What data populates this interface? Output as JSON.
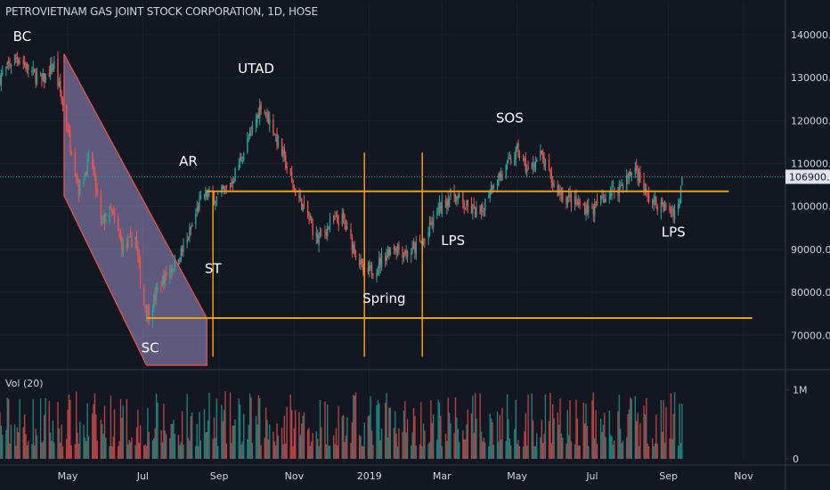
{
  "header": {
    "title": "PETROVIETNAM GAS JOINT STOCK CORPORATION, 1D, HOSE"
  },
  "volume": {
    "label": "Vol (20)"
  },
  "colors": {
    "background": "#131722",
    "grid": "#1e2230",
    "up": "#26a69a",
    "down": "#ef5350",
    "level": "#f59e0b",
    "channel_fill": "#9c8fc9",
    "text": "#d1d4dc",
    "price_tag": "#e1e3ea"
  },
  "chart_data": {
    "type": "candlestick",
    "title": "PETROVIETNAM GAS JOINT STOCK CORPORATION, 1D, HOSE",
    "price_ticks": [
      "140000.0",
      "130000.0",
      "120000.0",
      "110000.0",
      "100000.0",
      "90000.0",
      "80000.0",
      "70000.0"
    ],
    "price_tick_values": [
      140000,
      130000,
      120000,
      110000,
      100000,
      90000,
      80000,
      70000
    ],
    "ylim": [
      63000,
      143500
    ],
    "current_price": "106900.0",
    "current_price_value": 106900,
    "volume_ticks": [
      "1M",
      "0"
    ],
    "volume_tick_values": [
      1000000,
      0
    ],
    "time_ticks": [
      "May",
      "Jul",
      "Sep",
      "Nov",
      "2019",
      "Mar",
      "May",
      "Jul",
      "Sep",
      "Nov"
    ],
    "time_tick_dates": [
      "2018-05-01",
      "2018-07-01",
      "2018-09-01",
      "2018-11-01",
      "2019-01-01",
      "2019-03-01",
      "2019-05-01",
      "2019-07-01",
      "2019-09-01",
      "2019-11-01"
    ],
    "xlim": [
      "2018-03-07",
      "2019-12-05"
    ],
    "price_path": [
      {
        "date": "2018-03-07",
        "close": 130000
      },
      {
        "date": "2018-03-20",
        "close": 135000
      },
      {
        "date": "2018-04-10",
        "close": 129000
      },
      {
        "date": "2018-04-20",
        "close": 133000
      },
      {
        "date": "2018-05-01",
        "close": 118000
      },
      {
        "date": "2018-05-10",
        "close": 104000
      },
      {
        "date": "2018-05-20",
        "close": 112000
      },
      {
        "date": "2018-05-28",
        "close": 96000
      },
      {
        "date": "2018-06-05",
        "close": 99000
      },
      {
        "date": "2018-06-15",
        "close": 90000
      },
      {
        "date": "2018-06-25",
        "close": 93000
      },
      {
        "date": "2018-07-01",
        "close": 78000
      },
      {
        "date": "2018-07-06",
        "close": 75000
      },
      {
        "date": "2018-07-15",
        "close": 82000
      },
      {
        "date": "2018-07-25",
        "close": 86000
      },
      {
        "date": "2018-08-05",
        "close": 91000
      },
      {
        "date": "2018-08-15",
        "close": 100000
      },
      {
        "date": "2018-08-20",
        "close": 103000
      },
      {
        "date": "2018-08-30",
        "close": 102000
      },
      {
        "date": "2018-09-10",
        "close": 105000
      },
      {
        "date": "2018-09-20",
        "close": 112000
      },
      {
        "date": "2018-10-02",
        "close": 121000
      },
      {
        "date": "2018-10-05",
        "close": 124000
      },
      {
        "date": "2018-10-15",
        "close": 118000
      },
      {
        "date": "2018-10-25",
        "close": 110000
      },
      {
        "date": "2018-11-01",
        "close": 104000
      },
      {
        "date": "2018-11-10",
        "close": 99000
      },
      {
        "date": "2018-11-20",
        "close": 92000
      },
      {
        "date": "2018-11-30",
        "close": 96000
      },
      {
        "date": "2018-12-10",
        "close": 97000
      },
      {
        "date": "2018-12-20",
        "close": 90000
      },
      {
        "date": "2018-12-28",
        "close": 84000
      },
      {
        "date": "2019-01-07",
        "close": 86000
      },
      {
        "date": "2019-01-20",
        "close": 91000
      },
      {
        "date": "2019-02-01",
        "close": 89000
      },
      {
        "date": "2019-02-15",
        "close": 92000
      },
      {
        "date": "2019-02-25",
        "close": 99000
      },
      {
        "date": "2019-03-10",
        "close": 103000
      },
      {
        "date": "2019-03-20",
        "close": 100000
      },
      {
        "date": "2019-04-01",
        "close": 98000
      },
      {
        "date": "2019-04-10",
        "close": 105000
      },
      {
        "date": "2019-04-20",
        "close": 108000
      },
      {
        "date": "2019-05-01",
        "close": 113000
      },
      {
        "date": "2019-05-10",
        "close": 108000
      },
      {
        "date": "2019-05-20",
        "close": 112000
      },
      {
        "date": "2019-06-01",
        "close": 104000
      },
      {
        "date": "2019-06-15",
        "close": 101000
      },
      {
        "date": "2019-07-01",
        "close": 99000
      },
      {
        "date": "2019-07-10",
        "close": 102000
      },
      {
        "date": "2019-07-25",
        "close": 105000
      },
      {
        "date": "2019-08-05",
        "close": 109000
      },
      {
        "date": "2019-08-15",
        "close": 102000
      },
      {
        "date": "2019-08-25",
        "close": 100000
      },
      {
        "date": "2019-09-05",
        "close": 99000
      },
      {
        "date": "2019-09-09",
        "close": 100000
      },
      {
        "date": "2019-09-12",
        "close": 106900
      }
    ],
    "annotations": [
      {
        "text": "BC",
        "date": "2018-03-25",
        "price": 138500
      },
      {
        "text": "UTAD",
        "date": "2018-10-01",
        "price": 131000
      },
      {
        "text": "AR",
        "date": "2018-08-07",
        "price": 109500
      },
      {
        "text": "ST",
        "date": "2018-08-27",
        "price": 84500
      },
      {
        "text": "SC",
        "date": "2018-07-07",
        "price": 66000
      },
      {
        "text": "SOS",
        "date": "2019-04-25",
        "price": 119500
      },
      {
        "text": "LPS",
        "date": "2019-03-10",
        "price": 91000
      },
      {
        "text": "Spring",
        "date": "2019-01-13",
        "price": 77500
      },
      {
        "text": "LPS",
        "date": "2019-09-05",
        "price": 93000
      }
    ],
    "levels": [
      {
        "price": 103500,
        "from": "2018-08-22",
        "to": "2019-10-20"
      },
      {
        "price": 74000,
        "from": "2018-07-04",
        "to": "2019-11-08"
      }
    ],
    "verticals": [
      "2018-08-27",
      "2018-12-28",
      "2019-02-13"
    ],
    "channel": [
      {
        "date": "2018-04-28",
        "price": 135500
      },
      {
        "date": "2018-08-22",
        "price": 74000
      },
      {
        "date": "2018-08-22",
        "price": 63000
      },
      {
        "date": "2018-07-04",
        "price": 63000
      },
      {
        "date": "2018-04-28",
        "price": 102500
      }
    ]
  }
}
